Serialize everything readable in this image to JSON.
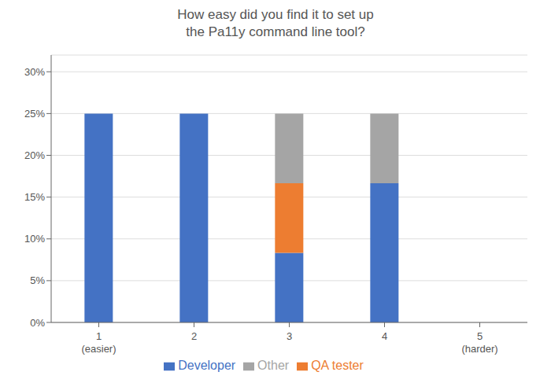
{
  "chart_data": {
    "type": "bar",
    "title": "How easy did you find it to set up\nthe Pa11y command line tool?",
    "categories": [
      "1\n(easier)",
      "2",
      "3",
      "4",
      "5\n(harder)"
    ],
    "series": [
      {
        "name": "Developer",
        "color": "#4472C4",
        "values": [
          25.0,
          25.0,
          8.333,
          16.667,
          0.0
        ]
      },
      {
        "name": "QA tester",
        "color": "#ED7D31",
        "values": [
          0.0,
          0.0,
          8.333,
          0.0,
          0.0
        ]
      },
      {
        "name": "Other",
        "color": "#A5A5A5",
        "values": [
          0.0,
          0.0,
          8.333,
          8.333,
          0.0
        ]
      }
    ],
    "stacked": true,
    "ylim": [
      0,
      32
    ],
    "yticks": [
      {
        "value": 0,
        "label": "0%"
      },
      {
        "value": 5,
        "label": "5%"
      },
      {
        "value": 10,
        "label": "10%"
      },
      {
        "value": 15,
        "label": "15%"
      },
      {
        "value": 20,
        "label": "20%"
      },
      {
        "value": 25,
        "label": "25%"
      },
      {
        "value": 30,
        "label": "30%"
      }
    ],
    "grid": true,
    "legend": "bottom"
  }
}
